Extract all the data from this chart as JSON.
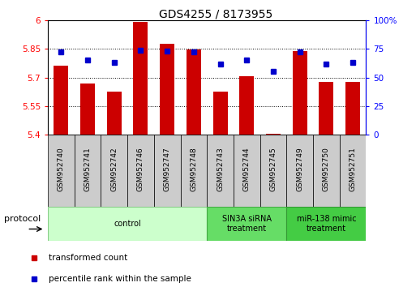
{
  "title": "GDS4255 / 8173955",
  "samples": [
    "GSM952740",
    "GSM952741",
    "GSM952742",
    "GSM952746",
    "GSM952747",
    "GSM952748",
    "GSM952743",
    "GSM952744",
    "GSM952745",
    "GSM952749",
    "GSM952750",
    "GSM952751"
  ],
  "bar_values": [
    5.76,
    5.67,
    5.625,
    5.99,
    5.875,
    5.845,
    5.625,
    5.705,
    5.405,
    5.84,
    5.675,
    5.675
  ],
  "bar_base": 5.4,
  "percentile_values": [
    72,
    65,
    63,
    74,
    73,
    72,
    62,
    65,
    55,
    72,
    62,
    63
  ],
  "bar_color": "#cc0000",
  "dot_color": "#0000cc",
  "ylim": [
    5.4,
    6.0
  ],
  "yticks": [
    5.4,
    5.55,
    5.7,
    5.85,
    6.0
  ],
  "ytick_labels": [
    "5.4",
    "5.55",
    "5.7",
    "5.85",
    "6"
  ],
  "y2lim": [
    0,
    100
  ],
  "y2ticks": [
    0,
    25,
    50,
    75,
    100
  ],
  "y2tick_labels": [
    "0",
    "25",
    "50",
    "75",
    "100%"
  ],
  "groups": [
    {
      "label": "control",
      "start": 0,
      "end": 6,
      "color": "#ccffcc",
      "edge_color": "#88cc88"
    },
    {
      "label": "SIN3A siRNA\ntreatment",
      "start": 6,
      "end": 9,
      "color": "#66dd66",
      "edge_color": "#44aa44"
    },
    {
      "label": "miR-138 mimic\ntreatment",
      "start": 9,
      "end": 12,
      "color": "#44cc44",
      "edge_color": "#339933"
    }
  ],
  "protocol_label": "protocol",
  "legend_bar_label": "transformed count",
  "legend_dot_label": "percentile rank within the sample",
  "title_fontsize": 10,
  "tick_fontsize": 7.5,
  "sample_fontsize": 6.5,
  "bar_width": 0.55
}
